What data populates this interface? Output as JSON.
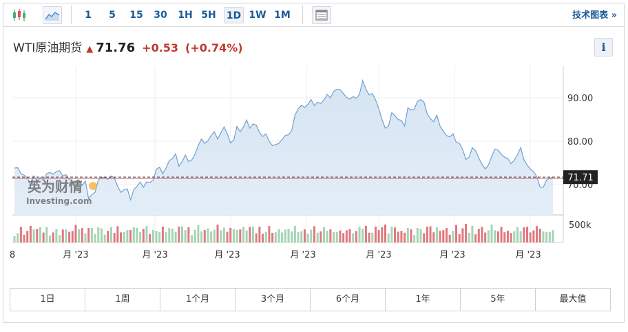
{
  "toolbar": {
    "icons": [
      "candlestick-icon",
      "area-chart-icon",
      "table-view-icon"
    ],
    "periods": [
      "1",
      "5",
      "15",
      "30",
      "1H",
      "5H",
      "1D",
      "1W",
      "1M"
    ],
    "active_period": "1D",
    "advanced_label": "技术图表 »"
  },
  "quote": {
    "name": "WTI原油期货",
    "direction": "up",
    "price": "71.76",
    "change": "+0.53",
    "change_pct": "(+0.74%)",
    "up_color": "#c0392b"
  },
  "info_label": "i",
  "watermark": {
    "cn": "英为财情",
    "en": "Investing.com"
  },
  "ranges": [
    "1日",
    "1周",
    "1个月",
    "3个月",
    "6个月",
    "1年",
    "5年",
    "最大值"
  ],
  "chart_data": {
    "type": "area",
    "title": "",
    "xlabel": "",
    "ylabel": "",
    "ylim": [
      63,
      97
    ],
    "y_ticks": [
      70.0,
      80.0,
      90.0
    ],
    "x_tick_labels": [
      "8",
      "月 '23",
      "月 '23",
      "月 '23",
      "月 '23",
      "月 '23",
      "月 '23",
      "月 '23"
    ],
    "last_price_label": "71.71",
    "line_color": "#6fa1cf",
    "fill_color": "#dce8f4",
    "series": [
      {
        "values": [
          73.8,
          73.9,
          72.5,
          72.2,
          71.5,
          70.0,
          72.0,
          70.8,
          71.6,
          71.0,
          72.5,
          72.8,
          72.4,
          73.0,
          73.2,
          72.0,
          72.3,
          71.2,
          70.8,
          69.2,
          71.0,
          69.8,
          70.8,
          66.7,
          67.7,
          68.2,
          71.0,
          71.6,
          71.7,
          71.2,
          72.0,
          71.5,
          69.6,
          68.2,
          68.8,
          69.0,
          66.5,
          68.8,
          69.6,
          70.6,
          69.4,
          70.6,
          70.5,
          71.0,
          73.5,
          74.0,
          72.5,
          73.8,
          75.5,
          76.0,
          77.1,
          74.2,
          75.3,
          76.8,
          75.3,
          75.7,
          77.0,
          79.0,
          80.5,
          79.5,
          80.1,
          81.3,
          82.2,
          80.5,
          81.9,
          83.3,
          81.7,
          79.6,
          80.2,
          83.4,
          82.2,
          83.3,
          84.9,
          83.0,
          84.0,
          83.7,
          82.0,
          81.1,
          81.7,
          80.0,
          79.0,
          79.2,
          79.5,
          80.4,
          81.3,
          81.5,
          82.5,
          86.0,
          87.5,
          88.3,
          87.8,
          88.5,
          89.6,
          88.2,
          89.0,
          88.7,
          89.5,
          90.8,
          90.0,
          91.5,
          92.0,
          91.9,
          91.0,
          90.1,
          89.7,
          90.3,
          89.9,
          90.8,
          94.0,
          92.0,
          90.7,
          91.0,
          89.5,
          87.5,
          85.0,
          83.0,
          83.5,
          86.6,
          85.9,
          85.0,
          84.8,
          83.5,
          87.7,
          87.2,
          87.4,
          89.2,
          89.6,
          89.0,
          86.3,
          85.2,
          84.5,
          86.0,
          83.5,
          82.3,
          81.3,
          81.0,
          81.7,
          79.8,
          79.5,
          78.1,
          75.8,
          76.3,
          78.5,
          77.8,
          76.1,
          74.7,
          73.6,
          74.5,
          76.5,
          78.2,
          77.9,
          77.0,
          76.3,
          76.0,
          74.8,
          75.6,
          76.9,
          78.5,
          75.7,
          74.5,
          73.6,
          73.0,
          71.8,
          69.4,
          69.4,
          71.0,
          71.5,
          71.7
        ]
      }
    ],
    "volume": {
      "label": "500k",
      "up_color": "#a4d4b4",
      "down_color": "#e0777d"
    }
  }
}
